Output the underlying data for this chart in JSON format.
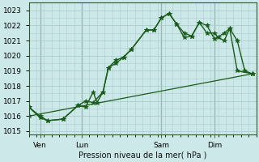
{
  "title": "Pression niveau de la mer( hPa )",
  "bg_color": "#cce8e8",
  "grid_color": "#aacccc",
  "line_color": "#1a5c1a",
  "xlim": [
    0,
    30
  ],
  "ylim": [
    1014.8,
    1023.5
  ],
  "yticks": [
    1015,
    1016,
    1017,
    1018,
    1019,
    1020,
    1021,
    1022,
    1023
  ],
  "day_ticks": [
    {
      "x": 1.5,
      "label": "Ven"
    },
    {
      "x": 7.0,
      "label": "Lun"
    },
    {
      "x": 17.5,
      "label": "Sam"
    },
    {
      "x": 24.5,
      "label": "Dim"
    }
  ],
  "vlines": [
    1.5,
    7.0,
    17.5,
    24.5
  ],
  "series1": [
    [
      0.0,
      1016.6
    ],
    [
      1.5,
      1016.0
    ],
    [
      2.5,
      1015.7
    ],
    [
      4.5,
      1015.8
    ],
    [
      6.5,
      1016.7
    ],
    [
      7.5,
      1016.6
    ],
    [
      8.5,
      1017.6
    ],
    [
      9.0,
      1016.9
    ],
    [
      9.8,
      1017.6
    ],
    [
      10.5,
      1019.2
    ],
    [
      11.5,
      1019.7
    ],
    [
      12.5,
      1019.9
    ],
    [
      13.5,
      1020.4
    ],
    [
      15.5,
      1021.7
    ],
    [
      16.5,
      1021.7
    ],
    [
      17.5,
      1022.5
    ],
    [
      18.5,
      1022.8
    ],
    [
      19.5,
      1022.1
    ],
    [
      20.5,
      1021.5
    ],
    [
      21.5,
      1021.3
    ],
    [
      22.5,
      1022.2
    ],
    [
      23.5,
      1021.5
    ],
    [
      24.5,
      1021.5
    ],
    [
      25.0,
      1021.2
    ],
    [
      25.8,
      1021.0
    ],
    [
      26.5,
      1021.8
    ],
    [
      27.5,
      1021.0
    ],
    [
      28.5,
      1019.0
    ],
    [
      29.5,
      1018.8
    ]
  ],
  "series2": [
    [
      0.0,
      1016.6
    ],
    [
      1.5,
      1015.9
    ],
    [
      2.5,
      1015.7
    ],
    [
      4.5,
      1015.8
    ],
    [
      6.5,
      1016.7
    ],
    [
      7.5,
      1017.0
    ],
    [
      8.5,
      1016.9
    ],
    [
      9.8,
      1017.6
    ],
    [
      10.5,
      1019.2
    ],
    [
      11.5,
      1019.5
    ],
    [
      12.5,
      1019.9
    ],
    [
      13.5,
      1020.4
    ],
    [
      15.5,
      1021.7
    ],
    [
      16.5,
      1021.7
    ],
    [
      17.5,
      1022.5
    ],
    [
      18.5,
      1022.8
    ],
    [
      19.5,
      1022.1
    ],
    [
      20.5,
      1021.2
    ],
    [
      21.5,
      1021.3
    ],
    [
      22.5,
      1022.2
    ],
    [
      23.5,
      1022.0
    ],
    [
      24.5,
      1021.1
    ],
    [
      25.8,
      1021.5
    ],
    [
      26.5,
      1021.8
    ],
    [
      27.5,
      1019.0
    ],
    [
      29.5,
      1018.8
    ]
  ],
  "series3": [
    [
      0.0,
      1016.0
    ],
    [
      29.5,
      1018.8
    ]
  ]
}
